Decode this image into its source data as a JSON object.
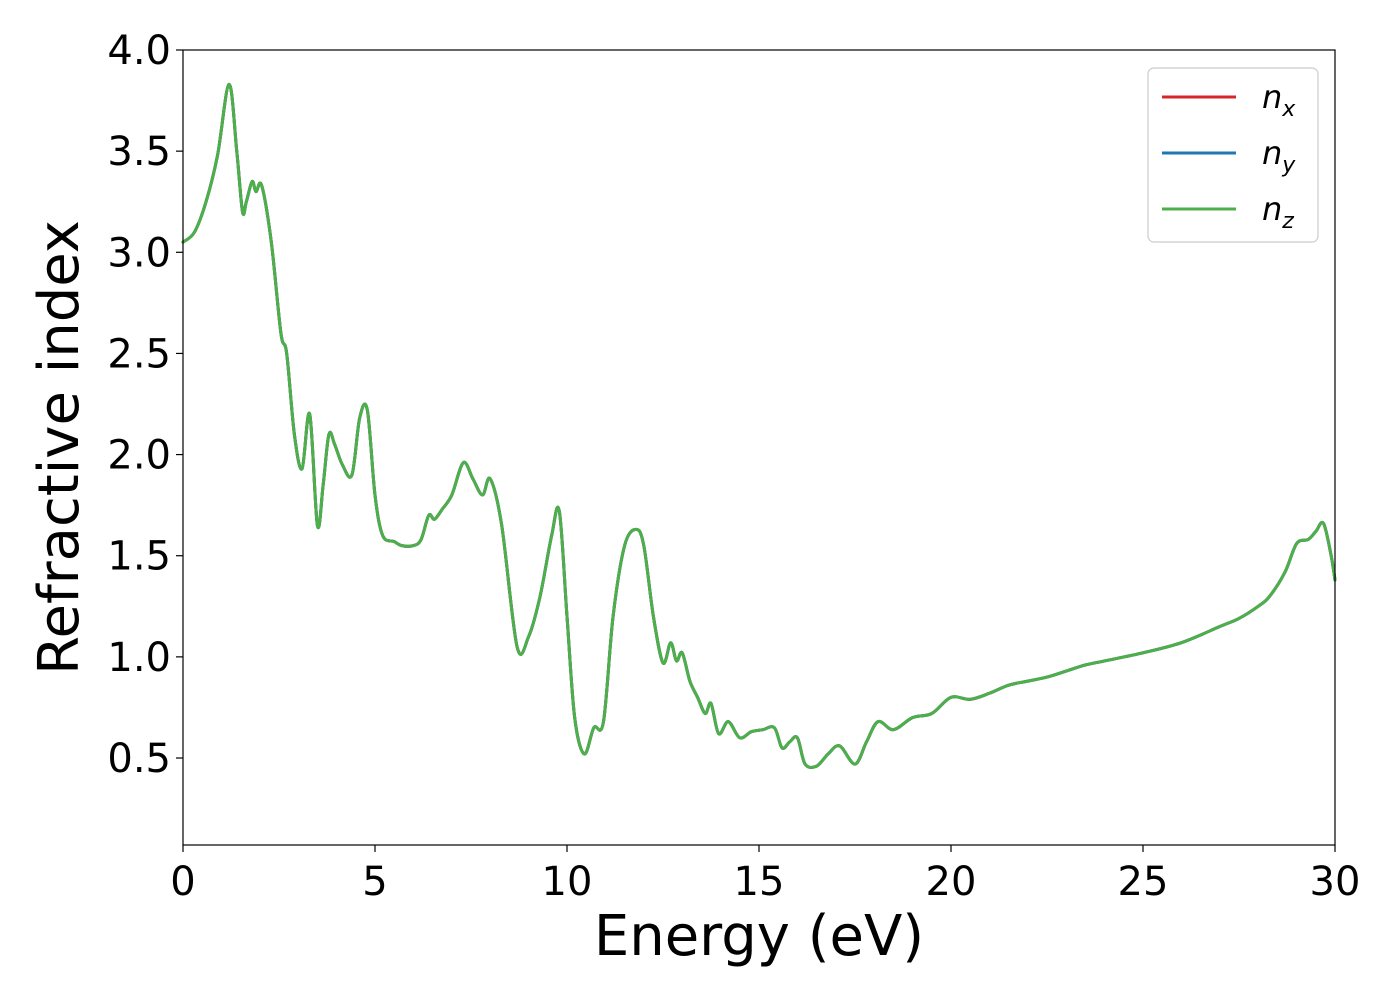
{
  "chart_data": {
    "type": "line",
    "xlabel": "Energy (eV)",
    "ylabel": "Refractive index",
    "xlim": [
      0,
      30
    ],
    "ylim": [
      0.07,
      4.0
    ],
    "xticks": [
      "0",
      "5",
      "10",
      "15",
      "20",
      "25",
      "30"
    ],
    "yticks": [
      "0.5",
      "1.0",
      "1.5",
      "2.0",
      "2.5",
      "3.0",
      "3.5",
      "4.0"
    ],
    "grid": false,
    "legend_position": "top-right",
    "legend": [
      {
        "base": "n",
        "sub": "x",
        "color": "#d62728"
      },
      {
        "base": "n",
        "sub": "y",
        "color": "#1f77b4"
      },
      {
        "base": "n",
        "sub": "z",
        "color": "#4daf4a"
      }
    ],
    "x": [
      0,
      0.3,
      0.6,
      0.9,
      1.2,
      1.4,
      1.55,
      1.65,
      1.8,
      1.9,
      2.05,
      2.3,
      2.55,
      2.7,
      2.9,
      3.1,
      3.3,
      3.5,
      3.65,
      3.8,
      3.95,
      4.15,
      4.4,
      4.6,
      4.8,
      5.0,
      5.2,
      5.5,
      5.7,
      6.0,
      6.2,
      6.4,
      6.55,
      6.75,
      7.0,
      7.3,
      7.55,
      7.8,
      8.0,
      8.3,
      8.7,
      9.0,
      9.3,
      9.6,
      9.8,
      10.0,
      10.2,
      10.45,
      10.7,
      10.95,
      11.2,
      11.5,
      11.8,
      12.0,
      12.25,
      12.5,
      12.7,
      12.85,
      13.0,
      13.2,
      13.4,
      13.6,
      13.75,
      13.95,
      14.2,
      14.5,
      14.8,
      15.1,
      15.4,
      15.6,
      15.8,
      16.0,
      16.2,
      16.5,
      16.8,
      17.1,
      17.5,
      17.8,
      18.1,
      18.5,
      19.0,
      19.5,
      20.0,
      20.5,
      21.0,
      21.5,
      22.0,
      22.5,
      23.0,
      23.5,
      24.0,
      25.0,
      26.0,
      27.0,
      27.5,
      28.0,
      28.3,
      28.7,
      29.0,
      29.3,
      29.5,
      29.7,
      29.9,
      30.0
    ],
    "series": [
      {
        "color": "#d62728",
        "values": [
          3.05,
          3.1,
          3.25,
          3.48,
          3.83,
          3.5,
          3.2,
          3.25,
          3.35,
          3.3,
          3.33,
          3.05,
          2.6,
          2.5,
          2.1,
          1.93,
          2.2,
          1.65,
          1.85,
          2.1,
          2.05,
          1.95,
          1.9,
          2.18,
          2.22,
          1.8,
          1.6,
          1.57,
          1.55,
          1.55,
          1.58,
          1.7,
          1.68,
          1.73,
          1.8,
          1.96,
          1.88,
          1.8,
          1.88,
          1.65,
          1.05,
          1.1,
          1.3,
          1.6,
          1.72,
          1.2,
          0.7,
          0.52,
          0.65,
          0.68,
          1.2,
          1.55,
          1.63,
          1.55,
          1.2,
          0.97,
          1.07,
          0.98,
          1.02,
          0.88,
          0.8,
          0.72,
          0.77,
          0.62,
          0.68,
          0.6,
          0.63,
          0.64,
          0.65,
          0.55,
          0.58,
          0.6,
          0.47,
          0.46,
          0.52,
          0.56,
          0.47,
          0.58,
          0.68,
          0.64,
          0.7,
          0.72,
          0.8,
          0.79,
          0.82,
          0.86,
          0.88,
          0.9,
          0.93,
          0.96,
          0.98,
          1.02,
          1.07,
          1.15,
          1.19,
          1.25,
          1.3,
          1.42,
          1.56,
          1.58,
          1.62,
          1.66,
          1.5,
          1.38
        ]
      },
      {
        "color": "#1f77b4",
        "values": [
          3.05,
          3.1,
          3.25,
          3.48,
          3.83,
          3.5,
          3.2,
          3.25,
          3.35,
          3.3,
          3.33,
          3.05,
          2.6,
          2.5,
          2.1,
          1.93,
          2.2,
          1.65,
          1.85,
          2.1,
          2.05,
          1.95,
          1.9,
          2.18,
          2.22,
          1.8,
          1.6,
          1.57,
          1.55,
          1.55,
          1.58,
          1.7,
          1.68,
          1.73,
          1.8,
          1.96,
          1.88,
          1.8,
          1.88,
          1.65,
          1.05,
          1.1,
          1.3,
          1.6,
          1.72,
          1.2,
          0.7,
          0.52,
          0.65,
          0.68,
          1.2,
          1.55,
          1.63,
          1.55,
          1.2,
          0.97,
          1.07,
          0.98,
          1.02,
          0.88,
          0.8,
          0.72,
          0.77,
          0.62,
          0.68,
          0.6,
          0.63,
          0.64,
          0.65,
          0.55,
          0.58,
          0.6,
          0.47,
          0.46,
          0.52,
          0.56,
          0.47,
          0.58,
          0.68,
          0.64,
          0.7,
          0.72,
          0.8,
          0.79,
          0.82,
          0.86,
          0.88,
          0.9,
          0.93,
          0.96,
          0.98,
          1.02,
          1.07,
          1.15,
          1.19,
          1.25,
          1.3,
          1.42,
          1.56,
          1.58,
          1.62,
          1.66,
          1.5,
          1.38
        ]
      },
      {
        "color": "#4daf4a",
        "values": [
          3.05,
          3.1,
          3.25,
          3.48,
          3.83,
          3.5,
          3.2,
          3.25,
          3.35,
          3.3,
          3.33,
          3.05,
          2.6,
          2.5,
          2.1,
          1.93,
          2.2,
          1.65,
          1.85,
          2.1,
          2.05,
          1.95,
          1.9,
          2.18,
          2.22,
          1.8,
          1.6,
          1.57,
          1.55,
          1.55,
          1.58,
          1.7,
          1.68,
          1.73,
          1.8,
          1.96,
          1.88,
          1.8,
          1.88,
          1.65,
          1.05,
          1.1,
          1.3,
          1.6,
          1.72,
          1.2,
          0.7,
          0.52,
          0.65,
          0.68,
          1.2,
          1.55,
          1.63,
          1.55,
          1.2,
          0.97,
          1.07,
          0.98,
          1.02,
          0.88,
          0.8,
          0.72,
          0.77,
          0.62,
          0.68,
          0.6,
          0.63,
          0.64,
          0.65,
          0.55,
          0.58,
          0.6,
          0.47,
          0.46,
          0.52,
          0.56,
          0.47,
          0.58,
          0.68,
          0.64,
          0.7,
          0.72,
          0.8,
          0.79,
          0.82,
          0.86,
          0.88,
          0.9,
          0.93,
          0.96,
          0.98,
          1.02,
          1.07,
          1.15,
          1.19,
          1.25,
          1.3,
          1.42,
          1.56,
          1.58,
          1.62,
          1.66,
          1.5,
          1.38
        ]
      }
    ]
  }
}
